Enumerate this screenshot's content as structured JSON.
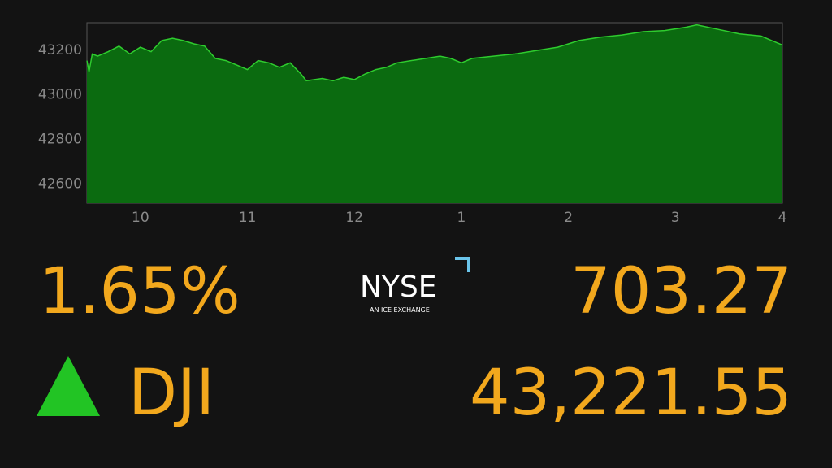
{
  "chart_data": {
    "type": "area",
    "x": [
      9.5,
      9.52,
      9.55,
      9.6,
      9.7,
      9.8,
      9.9,
      10.0,
      10.1,
      10.2,
      10.3,
      10.4,
      10.5,
      10.6,
      10.7,
      10.8,
      10.9,
      11.0,
      11.1,
      11.2,
      11.3,
      11.4,
      11.5,
      11.55,
      11.7,
      11.8,
      11.9,
      12.0,
      12.1,
      12.2,
      12.3,
      12.4,
      12.6,
      12.8,
      12.9,
      13.0,
      13.1,
      13.3,
      13.5,
      13.7,
      13.9,
      14.1,
      14.3,
      14.5,
      14.7,
      14.9,
      15.1,
      15.2,
      15.4,
      15.6,
      15.8,
      15.9,
      16.0
    ],
    "values": [
      43150,
      43100,
      43180,
      43170,
      43190,
      43215,
      43180,
      43210,
      43190,
      43240,
      43250,
      43240,
      43225,
      43215,
      43160,
      43150,
      43130,
      43110,
      43150,
      43140,
      43120,
      43140,
      43090,
      43060,
      43070,
      43060,
      43075,
      43065,
      43090,
      43110,
      43120,
      43140,
      43155,
      43170,
      43160,
      43140,
      43160,
      43170,
      43180,
      43195,
      43210,
      43240,
      43255,
      43265,
      43280,
      43285,
      43300,
      43310,
      43290,
      43270,
      43260,
      43240,
      43220
    ],
    "color": "#2ecc2e",
    "fill_color": "#0b6b10",
    "xlim": [
      9.5,
      16
    ],
    "ylim": [
      42510,
      43320
    ],
    "xticks": [
      10,
      11,
      12,
      {
        "value": 13,
        "label": "1"
      },
      {
        "value": 14,
        "label": "2"
      },
      {
        "value": 15,
        "label": "3"
      },
      {
        "value": 16,
        "label": "4"
      }
    ],
    "yticks": [
      42600,
      42800,
      43000,
      43200
    ]
  },
  "quote": {
    "percent_change": "1.65%",
    "point_change": "703.27",
    "symbol": "DJI",
    "price": "43,221.55"
  },
  "logo": {
    "name": "NYSE",
    "tagline": "AN ICE EXCHANGE"
  }
}
